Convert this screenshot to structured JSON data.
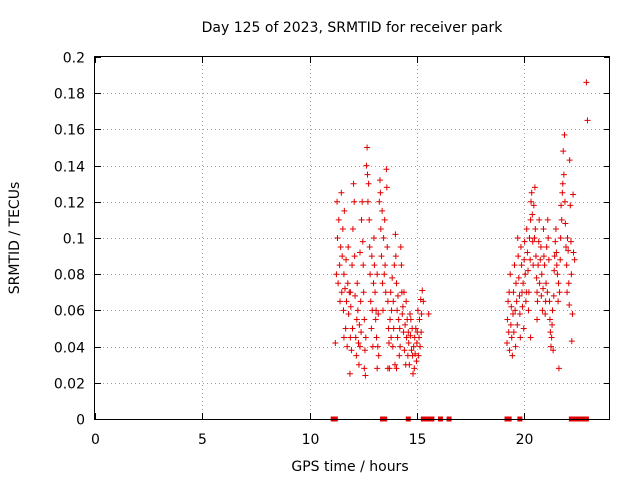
{
  "chart_data": {
    "type": "scatter",
    "title": "Day 125 of 2023, SRMTID for receiver park",
    "xlabel": "GPS time / hours",
    "ylabel": "SRMTID / TECUs",
    "xlim": [
      0,
      24
    ],
    "ylim": [
      0,
      0.2
    ],
    "grid": true,
    "marker": "+",
    "series_color": "#e00000",
    "x_ticks": [
      {
        "value": 0,
        "label": "0"
      },
      {
        "value": 5,
        "label": "5"
      },
      {
        "value": 10,
        "label": "10"
      },
      {
        "value": 15,
        "label": "15"
      },
      {
        "value": 20,
        "label": "20"
      }
    ],
    "y_ticks": [
      {
        "value": 0,
        "label": "0"
      },
      {
        "value": 0.02,
        "label": "0.02"
      },
      {
        "value": 0.04,
        "label": "0.04"
      },
      {
        "value": 0.06,
        "label": "0.06"
      },
      {
        "value": 0.08,
        "label": "0.08"
      },
      {
        "value": 0.1,
        "label": "0.1"
      },
      {
        "value": 0.12,
        "label": "0.12"
      },
      {
        "value": 0.14,
        "label": "0.14"
      },
      {
        "value": 0.16,
        "label": "0.16"
      },
      {
        "value": 0.18,
        "label": "0.18"
      },
      {
        "value": 0.2,
        "label": "0.2"
      }
    ],
    "zero_flags_x": [
      11.1,
      11.2,
      13.4,
      13.5,
      14.6,
      15.3,
      15.4,
      15.5,
      15.6,
      15.7,
      16.1,
      16.5,
      19.2,
      19.3,
      19.8,
      22.2,
      22.3,
      22.5,
      22.6,
      22.7,
      22.8,
      22.9
    ],
    "points": [
      [
        11.2,
        0.042
      ],
      [
        11.25,
        0.08
      ],
      [
        11.28,
        0.12
      ],
      [
        11.3,
        0.1
      ],
      [
        11.33,
        0.075
      ],
      [
        11.36,
        0.11
      ],
      [
        11.4,
        0.085
      ],
      [
        11.42,
        0.065
      ],
      [
        11.45,
        0.095
      ],
      [
        11.48,
        0.125
      ],
      [
        11.5,
        0.07
      ],
      [
        11.52,
        0.09
      ],
      [
        11.55,
        0.105
      ],
      [
        11.58,
        0.06
      ],
      [
        11.6,
        0.08
      ],
      [
        11.62,
        0.115
      ],
      [
        11.65,
        0.072
      ],
      [
        11.68,
        0.05
      ],
      [
        11.7,
        0.088
      ],
      [
        11.72,
        0.065
      ],
      [
        11.75,
        0.04
      ],
      [
        11.78,
        0.075
      ],
      [
        11.8,
        0.095
      ],
      [
        11.82,
        0.058
      ],
      [
        11.85,
        0.07
      ],
      [
        11.88,
        0.025
      ],
      [
        11.9,
        0.045
      ],
      [
        11.92,
        0.062
      ],
      [
        11.95,
        0.038
      ],
      [
        11.98,
        0.085
      ],
      [
        12.0,
        0.05
      ],
      [
        12.02,
        0.105
      ],
      [
        12.05,
        0.13
      ],
      [
        12.08,
        0.12
      ],
      [
        12.1,
        0.09
      ],
      [
        12.12,
        0.068
      ],
      [
        12.15,
        0.045
      ],
      [
        12.18,
        0.035
      ],
      [
        12.2,
        0.055
      ],
      [
        12.22,
        0.075
      ],
      [
        12.25,
        0.06
      ],
      [
        12.28,
        0.042
      ],
      [
        12.3,
        0.03
      ],
      [
        12.32,
        0.052
      ],
      [
        12.35,
        0.04
      ],
      [
        12.38,
        0.065
      ],
      [
        12.4,
        0.048
      ],
      [
        12.42,
        0.11
      ],
      [
        12.45,
        0.12
      ],
      [
        12.48,
        0.098
      ],
      [
        12.5,
        0.085
      ],
      [
        12.52,
        0.07
      ],
      [
        12.55,
        0.055
      ],
      [
        12.58,
        0.038
      ],
      [
        12.6,
        0.024
      ],
      [
        12.62,
        0.045
      ],
      [
        12.65,
        0.14
      ],
      [
        12.68,
        0.15
      ],
      [
        12.7,
        0.135
      ],
      [
        12.72,
        0.12
      ],
      [
        12.75,
        0.13
      ],
      [
        12.78,
        0.11
      ],
      [
        12.8,
        0.095
      ],
      [
        12.82,
        0.08
      ],
      [
        12.85,
        0.065
      ],
      [
        12.88,
        0.05
      ],
      [
        12.9,
        0.09
      ],
      [
        12.92,
        0.06
      ],
      [
        12.95,
        0.04
      ],
      [
        12.98,
        0.075
      ],
      [
        13.0,
        0.1
      ],
      [
        13.02,
        0.085
      ],
      [
        13.05,
        0.07
      ],
      [
        13.08,
        0.055
      ],
      [
        13.1,
        0.06
      ],
      [
        13.12,
        0.045
      ],
      [
        13.15,
        0.08
      ],
      [
        13.18,
        0.04
      ],
      [
        13.2,
        0.058
      ],
      [
        13.22,
        0.035
      ],
      [
        13.25,
        0.12
      ],
      [
        13.28,
        0.132
      ],
      [
        13.3,
        0.125
      ],
      [
        13.32,
        0.105
      ],
      [
        13.35,
        0.09
      ],
      [
        13.38,
        0.115
      ],
      [
        13.4,
        0.075
      ],
      [
        13.42,
        0.06
      ],
      [
        13.45,
        0.1
      ],
      [
        13.48,
        0.08
      ],
      [
        13.5,
        0.11
      ],
      [
        13.52,
        0.085
      ],
      [
        13.55,
        0.07
      ],
      [
        13.58,
        0.138
      ],
      [
        13.6,
        0.128
      ],
      [
        13.62,
        0.095
      ],
      [
        13.65,
        0.065
      ],
      [
        13.68,
        0.05
      ],
      [
        13.7,
        0.042
      ],
      [
        13.72,
        0.028
      ],
      [
        13.75,
        0.055
      ],
      [
        13.78,
        0.07
      ],
      [
        13.8,
        0.045
      ],
      [
        13.82,
        0.06
      ],
      [
        13.85,
        0.078
      ],
      [
        13.88,
        0.04
      ],
      [
        13.9,
        0.065
      ],
      [
        13.92,
        0.05
      ],
      [
        13.95,
        0.085
      ],
      [
        13.98,
        0.03
      ],
      [
        14.0,
        0.102
      ],
      [
        14.02,
        0.09
      ],
      [
        14.05,
        0.075
      ],
      [
        14.08,
        0.06
      ],
      [
        14.1,
        0.045
      ],
      [
        14.12,
        0.068
      ],
      [
        14.15,
        0.055
      ],
      [
        14.18,
        0.035
      ],
      [
        14.2,
        0.05
      ],
      [
        14.22,
        0.04
      ],
      [
        14.25,
        0.095
      ],
      [
        14.28,
        0.085
      ],
      [
        14.3,
        0.07
      ],
      [
        14.32,
        0.058
      ],
      [
        14.35,
        0.062
      ],
      [
        14.38,
        0.048
      ],
      [
        14.4,
        0.07
      ],
      [
        14.42,
        0.038
      ],
      [
        14.45,
        0.052
      ],
      [
        14.48,
        0.03
      ],
      [
        14.5,
        0.065
      ],
      [
        14.52,
        0.045
      ],
      [
        14.55,
        0.055
      ],
      [
        14.58,
        0.035
      ],
      [
        14.6,
        0.048
      ],
      [
        14.62,
        0.042
      ],
      [
        14.65,
        0.03
      ],
      [
        14.68,
        0.058
      ],
      [
        14.7,
        0.046
      ],
      [
        14.72,
        0.055
      ],
      [
        14.75,
        0.038
      ],
      [
        14.78,
        0.05
      ],
      [
        14.8,
        0.035
      ],
      [
        14.82,
        0.025
      ],
      [
        14.85,
        0.04
      ],
      [
        14.88,
        0.028
      ],
      [
        14.9,
        0.045
      ],
      [
        14.92,
        0.036
      ],
      [
        14.95,
        0.05
      ],
      [
        14.98,
        0.032
      ],
      [
        15.0,
        0.042
      ],
      [
        15.02,
        0.048
      ],
      [
        15.05,
        0.06
      ],
      [
        15.08,
        0.035
      ],
      [
        15.1,
        0.045
      ],
      [
        15.12,
        0.055
      ],
      [
        15.15,
        0.04
      ],
      [
        15.18,
        0.066
      ],
      [
        15.2,
        0.048
      ],
      [
        15.22,
        0.058
      ],
      [
        15.25,
        0.071
      ],
      [
        15.3,
        0.065
      ],
      [
        15.55,
        0.058
      ],
      [
        12.35,
        0.092
      ],
      [
        12.55,
        0.028
      ],
      [
        13.15,
        0.028
      ],
      [
        13.65,
        0.028
      ],
      [
        14.05,
        0.028
      ],
      [
        11.6,
        0.045
      ],
      [
        11.9,
        0.07
      ],
      [
        19.2,
        0.042
      ],
      [
        19.22,
        0.055
      ],
      [
        19.25,
        0.065
      ],
      [
        19.28,
        0.048
      ],
      [
        19.3,
        0.07
      ],
      [
        19.32,
        0.038
      ],
      [
        19.35,
        0.08
      ],
      [
        19.38,
        0.052
      ],
      [
        19.4,
        0.062
      ],
      [
        19.42,
        0.045
      ],
      [
        19.45,
        0.035
      ],
      [
        19.48,
        0.058
      ],
      [
        19.5,
        0.07
      ],
      [
        19.52,
        0.048
      ],
      [
        19.55,
        0.085
      ],
      [
        19.58,
        0.06
      ],
      [
        19.6,
        0.04
      ],
      [
        19.62,
        0.075
      ],
      [
        19.65,
        0.065
      ],
      [
        19.68,
        0.052
      ],
      [
        19.7,
        0.1
      ],
      [
        19.72,
        0.09
      ],
      [
        19.75,
        0.078
      ],
      [
        19.78,
        0.068
      ],
      [
        19.8,
        0.058
      ],
      [
        19.82,
        0.045
      ],
      [
        19.85,
        0.095
      ],
      [
        19.88,
        0.085
      ],
      [
        19.9,
        0.07
      ],
      [
        19.92,
        0.062
      ],
      [
        19.95,
        0.075
      ],
      [
        19.98,
        0.05
      ],
      [
        20.0,
        0.088
      ],
      [
        20.02,
        0.098
      ],
      [
        20.05,
        0.08
      ],
      [
        20.08,
        0.065
      ],
      [
        20.1,
        0.07
      ],
      [
        20.12,
        0.105
      ],
      [
        20.15,
        0.092
      ],
      [
        20.18,
        0.082
      ],
      [
        20.2,
        0.06
      ],
      [
        20.22,
        0.07
      ],
      [
        20.25,
        0.1
      ],
      [
        20.28,
        0.088
      ],
      [
        20.3,
        0.11
      ],
      [
        20.32,
        0.12
      ],
      [
        20.35,
        0.125
      ],
      [
        20.38,
        0.113
      ],
      [
        20.4,
        0.098
      ],
      [
        20.42,
        0.085
      ],
      [
        20.45,
        0.118
      ],
      [
        20.48,
        0.1
      ],
      [
        20.5,
        0.128
      ],
      [
        20.52,
        0.105
      ],
      [
        20.55,
        0.09
      ],
      [
        20.58,
        0.078
      ],
      [
        20.6,
        0.07
      ],
      [
        20.62,
        0.065
      ],
      [
        20.65,
        0.085
      ],
      [
        20.68,
        0.098
      ],
      [
        20.7,
        0.11
      ],
      [
        20.72,
        0.075
      ],
      [
        20.75,
        0.088
      ],
      [
        20.78,
        0.095
      ],
      [
        20.8,
        0.068
      ],
      [
        20.82,
        0.08
      ],
      [
        20.85,
        0.06
      ],
      [
        20.88,
        0.072
      ],
      [
        20.9,
        0.105
      ],
      [
        20.92,
        0.09
      ],
      [
        20.95,
        0.085
      ],
      [
        20.98,
        0.058
      ],
      [
        21.0,
        0.065
      ],
      [
        21.02,
        0.075
      ],
      [
        21.05,
        0.095
      ],
      [
        21.08,
        0.07
      ],
      [
        21.1,
        0.11
      ],
      [
        21.12,
        0.1
      ],
      [
        21.15,
        0.088
      ],
      [
        21.18,
        0.065
      ],
      [
        21.2,
        0.055
      ],
      [
        21.22,
        0.048
      ],
      [
        21.25,
        0.04
      ],
      [
        21.28,
        0.045
      ],
      [
        21.3,
        0.052
      ],
      [
        21.32,
        0.06
      ],
      [
        21.35,
        0.038
      ],
      [
        21.38,
        0.068
      ],
      [
        21.4,
        0.082
      ],
      [
        21.42,
        0.09
      ],
      [
        21.45,
        0.098
      ],
      [
        21.48,
        0.105
      ],
      [
        21.5,
        0.092
      ],
      [
        21.52,
        0.085
      ],
      [
        21.55,
        0.08
      ],
      [
        21.58,
        0.065
      ],
      [
        21.6,
        0.075
      ],
      [
        21.62,
        0.028
      ],
      [
        21.65,
        0.07
      ],
      [
        21.68,
        0.088
      ],
      [
        21.7,
        0.1
      ],
      [
        21.72,
        0.118
      ],
      [
        21.75,
        0.11
      ],
      [
        21.78,
        0.125
      ],
      [
        21.8,
        0.13
      ],
      [
        21.82,
        0.148
      ],
      [
        21.85,
        0.135
      ],
      [
        21.88,
        0.157
      ],
      [
        21.9,
        0.12
      ],
      [
        21.92,
        0.108
      ],
      [
        21.95,
        0.095
      ],
      [
        21.98,
        0.085
      ],
      [
        22.0,
        0.07
      ],
      [
        22.02,
        0.1
      ],
      [
        22.05,
        0.093
      ],
      [
        22.08,
        0.075
      ],
      [
        22.1,
        0.063
      ],
      [
        22.12,
        0.143
      ],
      [
        22.15,
        0.118
      ],
      [
        22.18,
        0.098
      ],
      [
        22.2,
        0.08
      ],
      [
        22.22,
        0.043
      ],
      [
        22.25,
        0.058
      ],
      [
        22.28,
        0.124
      ],
      [
        22.3,
        0.092
      ],
      [
        22.35,
        0.088
      ],
      [
        22.9,
        0.186
      ],
      [
        22.95,
        0.165
      ],
      [
        20.3,
        0.045
      ],
      [
        20.6,
        0.055
      ]
    ]
  }
}
